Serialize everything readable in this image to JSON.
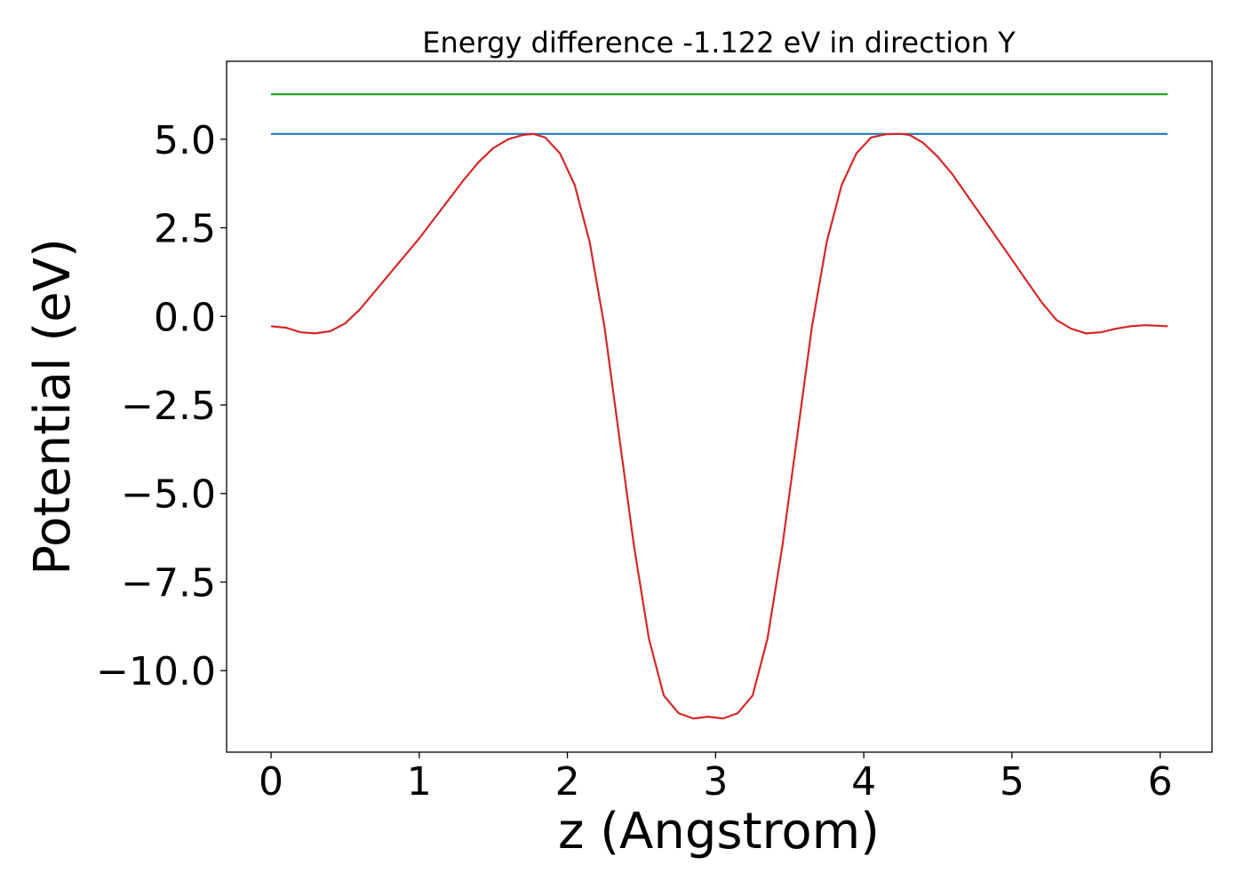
{
  "chart_data": {
    "type": "line",
    "title": "Energy difference -1.122 eV in direction Y",
    "xlabel": "z (Angstrom)",
    "ylabel": "Potential (eV)",
    "xlim": [
      -0.3,
      6.35
    ],
    "ylim": [
      -12.3,
      7.2
    ],
    "xticks": [
      0,
      1,
      2,
      3,
      4,
      5,
      6
    ],
    "xtick_labels": [
      "0",
      "1",
      "2",
      "3",
      "4",
      "5",
      "6"
    ],
    "yticks": [
      -10.0,
      -7.5,
      -5.0,
      -2.5,
      0.0,
      2.5,
      5.0
    ],
    "ytick_labels": [
      "−10.0",
      "−7.5",
      "−5.0",
      "−2.5",
      "0.0",
      "2.5",
      "5.0"
    ],
    "grid": false,
    "series": [
      {
        "color": "#2ca02c",
        "x": [
          0.0,
          6.05
        ],
        "y": [
          6.27,
          6.27
        ]
      },
      {
        "color": "#1f77b4",
        "x": [
          0.0,
          6.05
        ],
        "y": [
          5.15,
          5.15
        ]
      },
      {
        "color": "#d62728",
        "x": [
          0.0,
          0.1,
          0.2,
          0.3,
          0.4,
          0.5,
          0.6,
          0.7,
          0.8,
          0.9,
          1.0,
          1.1,
          1.2,
          1.3,
          1.4,
          1.5,
          1.6,
          1.7,
          1.77,
          1.85,
          1.95,
          2.05,
          2.15,
          2.25,
          2.35,
          2.45,
          2.55,
          2.65,
          2.75,
          2.85,
          2.95,
          3.05,
          3.15,
          3.25,
          3.35,
          3.45,
          3.55,
          3.65,
          3.75,
          3.85,
          3.95,
          4.05,
          4.15,
          4.25,
          4.31,
          4.4,
          4.5,
          4.6,
          4.7,
          4.8,
          4.9,
          5.0,
          5.1,
          5.2,
          5.3,
          5.4,
          5.5,
          5.6,
          5.7,
          5.8,
          5.9,
          6.05
        ],
        "y": [
          -0.28,
          -0.32,
          -0.45,
          -0.48,
          -0.42,
          -0.2,
          0.2,
          0.7,
          1.2,
          1.7,
          2.2,
          2.75,
          3.3,
          3.85,
          4.35,
          4.75,
          5.0,
          5.12,
          5.15,
          5.05,
          4.6,
          3.7,
          2.1,
          -0.3,
          -3.4,
          -6.5,
          -9.1,
          -10.7,
          -11.2,
          -11.35,
          -11.3,
          -11.35,
          -11.2,
          -10.7,
          -9.1,
          -6.5,
          -3.4,
          -0.3,
          2.1,
          3.7,
          4.6,
          5.05,
          5.14,
          5.15,
          5.12,
          4.9,
          4.5,
          4.0,
          3.4,
          2.8,
          2.2,
          1.6,
          1.0,
          0.4,
          -0.1,
          -0.35,
          -0.48,
          -0.45,
          -0.35,
          -0.28,
          -0.25,
          -0.28
        ]
      }
    ]
  }
}
